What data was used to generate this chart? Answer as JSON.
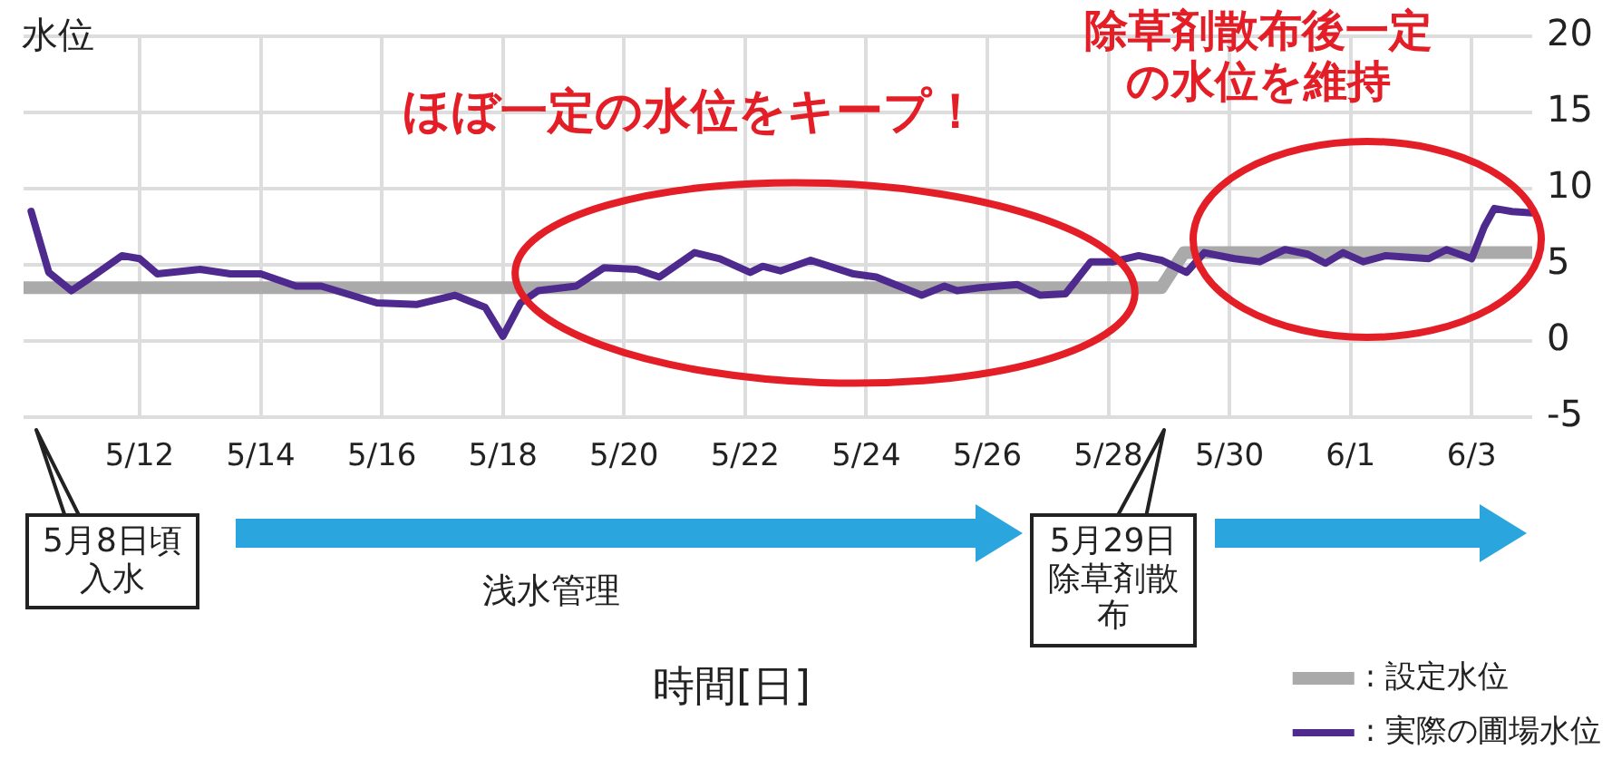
{
  "chart_data": {
    "type": "line",
    "ylabel": "水位",
    "xlabel": "時間[日]",
    "xlim": [
      "--05-10T02:00",
      "--06-04T00:00"
    ],
    "ylim": [
      -5,
      20
    ],
    "yticks": [
      -5,
      0,
      5,
      10,
      15,
      20
    ],
    "xticks": [
      {
        "value": "--05-12",
        "label": "5/12"
      },
      {
        "value": "--05-14",
        "label": "5/14"
      },
      {
        "value": "--05-16",
        "label": "5/16"
      },
      {
        "value": "--05-18",
        "label": "5/18"
      },
      {
        "value": "--05-20",
        "label": "5/20"
      },
      {
        "value": "--05-22",
        "label": "5/22"
      },
      {
        "value": "--05-24",
        "label": "5/24"
      },
      {
        "value": "--05-26",
        "label": "5/26"
      },
      {
        "value": "--05-28",
        "label": "5/28"
      },
      {
        "value": "--05-30",
        "label": "5/30"
      },
      {
        "value": "--06-01",
        "label": "6/1"
      },
      {
        "value": "--06-03",
        "label": "6/3"
      }
    ],
    "grid": true,
    "legend": "bottom right",
    "marker": "none",
    "series": [
      {
        "name": ": 設定水位",
        "color": "#aaaaaa",
        "x": [
          "--05-10T02:00",
          "--05-28T21:00",
          "--05-29T06:00",
          "--06-04T00:00"
        ],
        "values": [
          3.5,
          3.5,
          5.8,
          5.8
        ]
      },
      {
        "name": ": 実際の圃場水位",
        "color": "#4e2a8e",
        "x": [
          "--05-10T05:00",
          "--05-10T12:00",
          "--05-10T21:00",
          "--05-11T05:00",
          "--05-11T17:00",
          "--05-12T00:00",
          "--05-12T07:00",
          "--05-13T00:00",
          "--05-13T12:00",
          "--05-14T00:00",
          "--05-14T14:00",
          "--05-15T00:00",
          "--05-15T22:00",
          "--05-16T14:00",
          "--05-17T05:00",
          "--05-17T17:00",
          "--05-18T00:00",
          "--05-18T07:00",
          "--05-18T14:00",
          "--05-19T05:00",
          "--05-19T16:00",
          "--05-20T05:00",
          "--05-20T14:00",
          "--05-21T04:00",
          "--05-21T14:00",
          "--05-22T02:00",
          "--05-22T07:00",
          "--05-22T14:00",
          "--05-23T02:00",
          "--05-23T19:00",
          "--05-24T04:00",
          "--05-24T22:00",
          "--05-25T07:00",
          "--05-25T12:00",
          "--05-25T21:00",
          "--05-26T12:00",
          "--05-26T21:00",
          "--05-27T07:00",
          "--05-27T17:00",
          "--05-28T02:00",
          "--05-28T12:00",
          "--05-28T21:00",
          "--05-29T07:00",
          "--05-29T14:00",
          "--05-30T02:00",
          "--05-30T12:00",
          "--05-30T22:00",
          "--05-31T07:00",
          "--05-31T14:00",
          "--05-31T21:00",
          "--06-01T05:00",
          "--06-01T14:00",
          "--06-02T07:00",
          "--06-02T14:00",
          "--06-03T00:00",
          "--06-03T05:00",
          "--06-03T09:00",
          "--06-03T16:00",
          "--06-04T00:00"
        ],
        "values": [
          8.5,
          4.5,
          3.3,
          4.2,
          5.6,
          5.4,
          4.4,
          4.7,
          4.4,
          4.4,
          3.6,
          3.6,
          2.5,
          2.4,
          3.0,
          2.2,
          0.3,
          2.5,
          3.3,
          3.6,
          4.8,
          4.7,
          4.2,
          5.8,
          5.4,
          4.5,
          4.9,
          4.6,
          5.3,
          4.4,
          4.2,
          3.0,
          3.6,
          3.3,
          3.5,
          3.7,
          3.0,
          3.1,
          5.2,
          5.2,
          5.6,
          5.3,
          4.5,
          5.8,
          5.4,
          5.2,
          6.0,
          5.7,
          5.1,
          5.8,
          5.2,
          5.6,
          5.4,
          6.0,
          5.4,
          7.5,
          8.7,
          8.5,
          8.4
        ]
      }
    ],
    "annotations": [
      "ほぼ一定の水位をキープ！",
      "除草剤散布後一定の水位を維持",
      "5月8日頃入水",
      "浅水管理",
      "5月29日除草剤散布"
    ]
  }
}
